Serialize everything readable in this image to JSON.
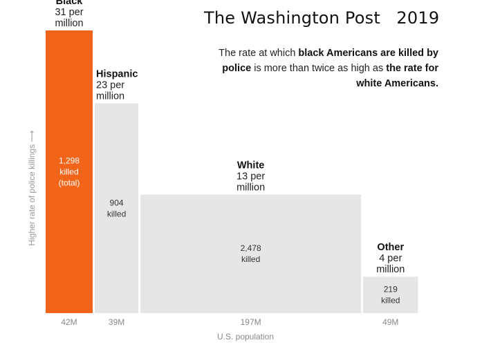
{
  "source_label": "The Washington Post   2019",
  "annotation": {
    "part1": "The rate at which ",
    "bold1": "black Americans are killed by police",
    "part2": " is more than twice as high as ",
    "bold2": "the rate for white Americans."
  },
  "chart_data": {
    "type": "bar",
    "title": "",
    "xlabel": "U.S. population",
    "ylabel": "Higher rate of police killings ⟶",
    "width_unit": "M",
    "categories": [
      "Black",
      "Hispanic",
      "White",
      "Other"
    ],
    "series": [
      {
        "rates": [
          31,
          23,
          13,
          4
        ],
        "rate_labels": [
          "31 per\nmillion",
          "23 per\nmillion",
          "13 per\nmillion",
          "4 per\nmillion"
        ],
        "killed": [
          1298,
          904,
          2478,
          219
        ],
        "killed_labels": [
          "1,298\nkilled\n(total)",
          "904\nkilled",
          "2,478\nkilled",
          "219\nkilled"
        ],
        "population_millions": [
          42,
          39,
          197,
          49
        ],
        "population_labels": [
          "42M",
          "39M",
          "197M",
          "49M"
        ]
      }
    ],
    "ylim": [
      0,
      31
    ],
    "grid": false,
    "colors": {
      "highlight": "#f26419",
      "bar": "#e6e6e6",
      "text": "#111111",
      "tick": "#888888"
    }
  }
}
